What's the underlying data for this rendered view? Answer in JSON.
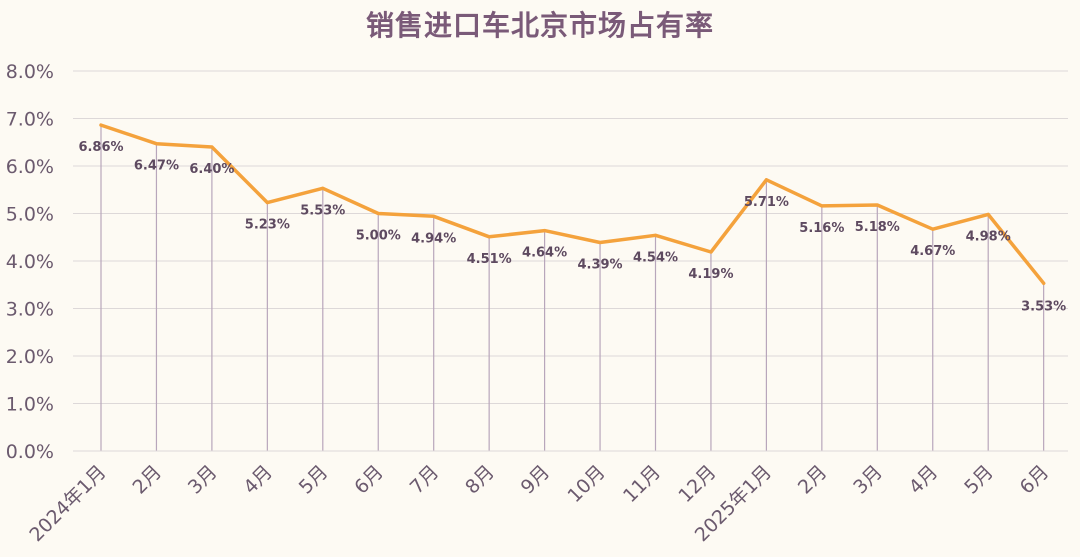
{
  "chart_data": {
    "type": "line",
    "title": "销售进口车北京市场占有率",
    "categories": [
      "2024年1月",
      "2月",
      "3月",
      "4月",
      "5月",
      "6月",
      "7月",
      "8月",
      "9月",
      "10月",
      "11月",
      "12月",
      "2025年1月",
      "2月",
      "3月",
      "4月",
      "5月",
      "6月"
    ],
    "values": [
      6.86,
      6.47,
      6.4,
      5.23,
      5.53,
      5.0,
      4.94,
      4.51,
      4.64,
      4.39,
      4.54,
      4.19,
      5.71,
      5.16,
      5.18,
      4.67,
      4.98,
      3.53
    ],
    "value_labels": [
      "6.86%",
      "6.47%",
      "6.40%",
      "5.23%",
      "5.53%",
      "5.00%",
      "4.94%",
      "4.51%",
      "4.64%",
      "4.39%",
      "4.54%",
      "4.19%",
      "5.71%",
      "5.16%",
      "5.18%",
      "4.67%",
      "4.98%",
      "3.53%"
    ],
    "y_ticks": [
      "0.0%",
      "1.0%",
      "2.0%",
      "3.0%",
      "4.0%",
      "5.0%",
      "6.0%",
      "7.0%",
      "8.0%"
    ],
    "ylim": [
      0,
      8
    ],
    "grid": true,
    "drop_lines": true,
    "colors": {
      "line": "#f4a23c",
      "drop_line": "#b8a6bb",
      "grid": "#ddd8d8",
      "title": "#7a5a78",
      "text": "#6b5a6e"
    }
  }
}
